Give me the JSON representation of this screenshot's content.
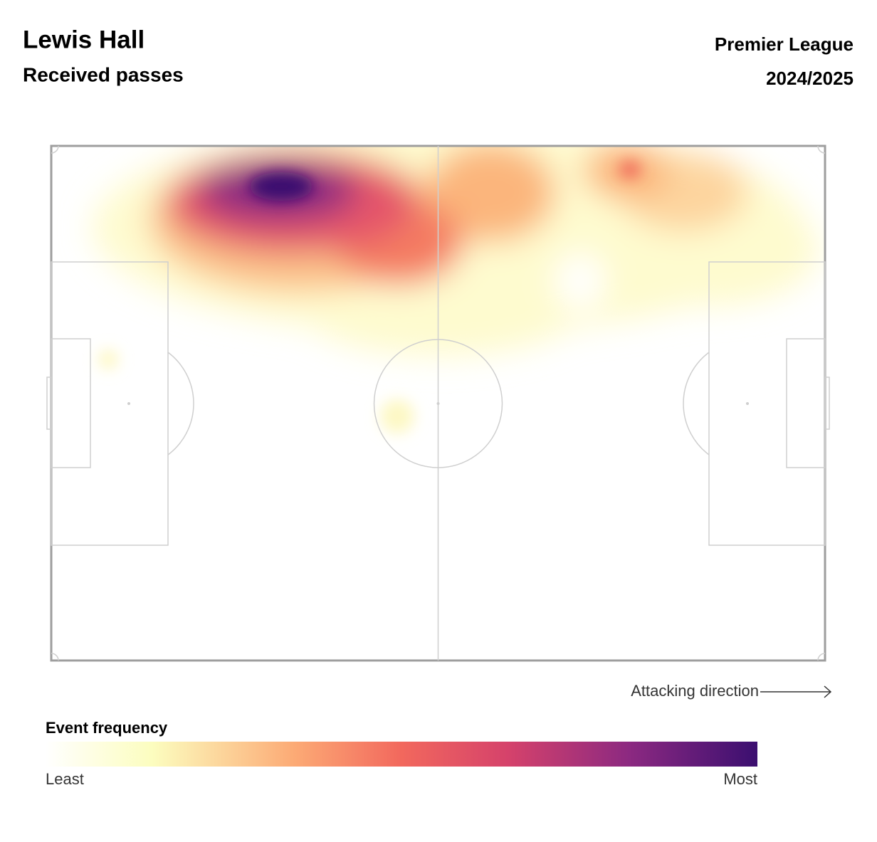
{
  "header": {
    "title": "Lewis Hall",
    "subtitle": "Received passes",
    "competition": "Premier League",
    "season": "2024/2025"
  },
  "pitch": {
    "direction_label": "Attacking direction"
  },
  "legend": {
    "title": "Event frequency",
    "min_label": "Least",
    "max_label": "Most"
  }
}
